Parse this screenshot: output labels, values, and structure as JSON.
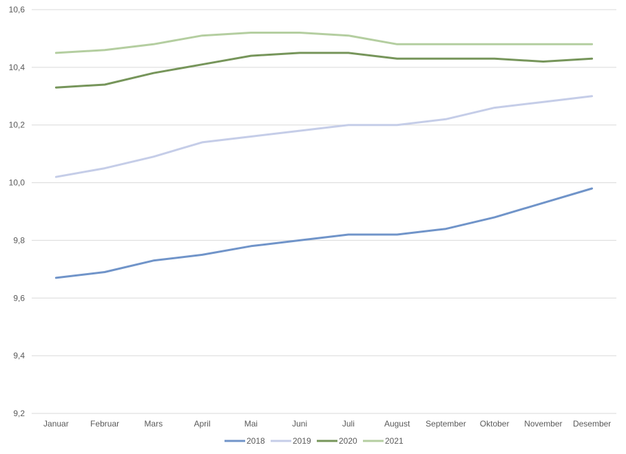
{
  "chart_data": {
    "type": "line",
    "categories": [
      "Januar",
      "Februar",
      "Mars",
      "April",
      "Mai",
      "Juni",
      "Juli",
      "August",
      "September",
      "Oktober",
      "November",
      "Desember"
    ],
    "y_ticks": [
      "9,2",
      "9,4",
      "9,6",
      "9,8",
      "10,0",
      "10,2",
      "10,4",
      "10,6"
    ],
    "ylim": [
      9.2,
      10.6
    ],
    "grid": true,
    "legend_position": "bottom",
    "series": [
      {
        "name": "2018",
        "color": "#7094c9",
        "values": [
          9.67,
          9.69,
          9.73,
          9.75,
          9.78,
          9.8,
          9.82,
          9.82,
          9.84,
          9.88,
          9.93,
          9.98
        ]
      },
      {
        "name": "2019",
        "color": "#c5cde8",
        "values": [
          10.02,
          10.05,
          10.09,
          10.14,
          10.16,
          10.18,
          10.2,
          10.2,
          10.22,
          10.26,
          10.28,
          10.3
        ]
      },
      {
        "name": "2020",
        "color": "#76955a",
        "values": [
          10.33,
          10.34,
          10.38,
          10.41,
          10.44,
          10.45,
          10.45,
          10.43,
          10.43,
          10.43,
          10.42,
          10.43
        ]
      },
      {
        "name": "2021",
        "color": "#b4cea0",
        "values": [
          10.45,
          10.46,
          10.48,
          10.51,
          10.52,
          10.52,
          10.51,
          10.48,
          10.48,
          10.48,
          10.48,
          10.48
        ]
      }
    ]
  }
}
